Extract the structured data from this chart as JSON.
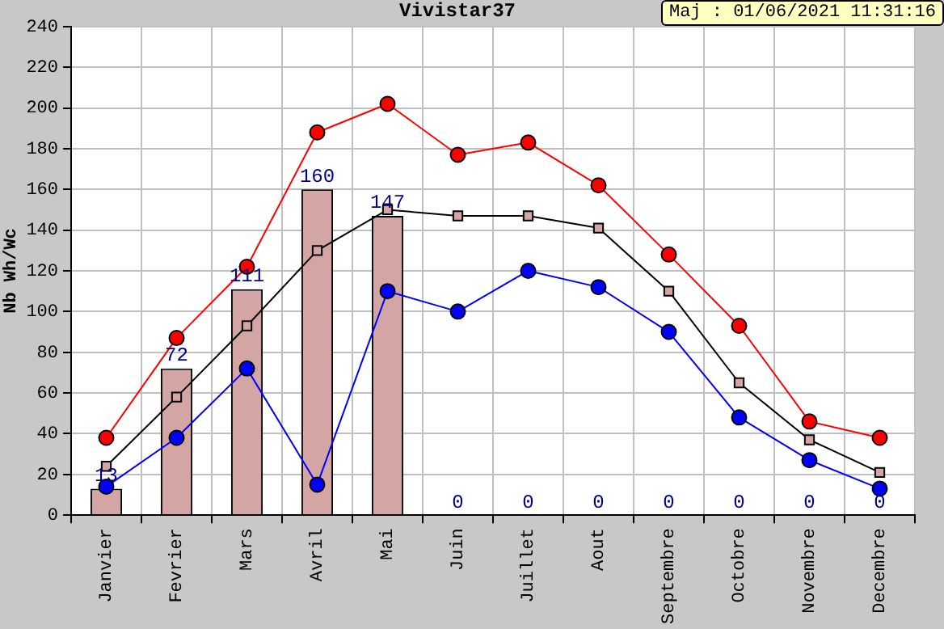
{
  "chart_data": {
    "type": "bar",
    "title": "Vivistar37",
    "ylabel": "Nb Wh/Wc",
    "annotations": [
      "Maj : 01/06/2021 11:31:16"
    ],
    "categories": [
      "Janvier",
      "Fevrier",
      "Mars",
      "Avril",
      "Mai",
      "Juin",
      "Juillet",
      "Aout",
      "Septembre",
      "Octobre",
      "Novembre",
      "Decembre"
    ],
    "series": [
      {
        "color": "#d4a5a5",
        "values": [
          13,
          72,
          111,
          160,
          147,
          0,
          0,
          0,
          0,
          0,
          0,
          0
        ],
        "value_labels": [
          "13",
          "72",
          "111",
          "160",
          "147",
          "0",
          "0",
          "0",
          "0",
          "0",
          "0",
          "0"
        ]
      },
      {
        "type": "line",
        "color": "#ff0000",
        "marker": "circle",
        "values": [
          38,
          87,
          122,
          188,
          202,
          177,
          183,
          162,
          128,
          93,
          46,
          38
        ]
      },
      {
        "type": "line",
        "color": "#000000",
        "marker": "square",
        "values": [
          24,
          58,
          93,
          130,
          150,
          147,
          147,
          141,
          110,
          65,
          37,
          21
        ]
      },
      {
        "type": "line",
        "color": "#0000ff",
        "marker": "circle",
        "values": [
          14,
          38,
          72,
          15,
          110,
          100,
          120,
          112,
          90,
          48,
          27,
          13
        ]
      }
    ],
    "ylim": [
      0,
      240
    ],
    "yticks": [
      0,
      20,
      40,
      60,
      80,
      100,
      120,
      140,
      160,
      180,
      200,
      220,
      240
    ],
    "grid": true,
    "legend": false
  }
}
